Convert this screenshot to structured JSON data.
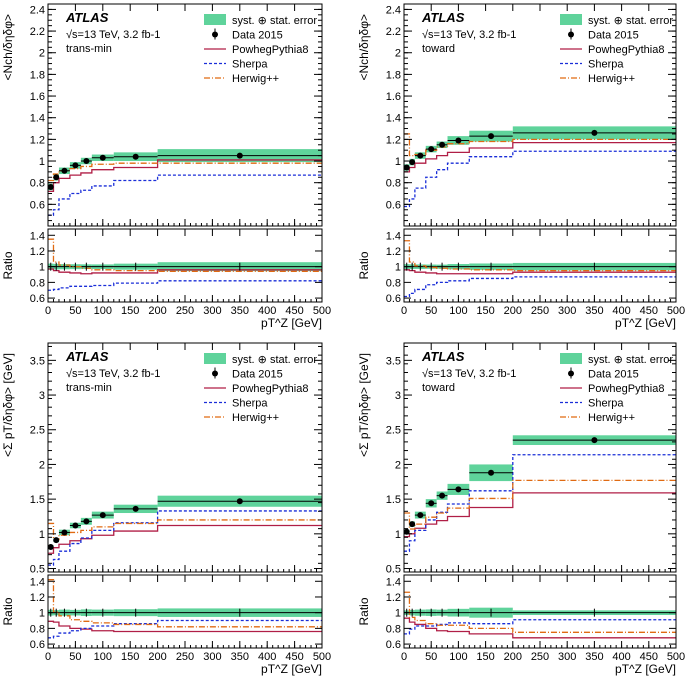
{
  "figure": {
    "experiment": "ATLAS",
    "energy_label": "√s=13 TeV, 3.2 fb-1"
  },
  "legend": {
    "band": "syst. ⊕ stat. error",
    "data": "Data 2015",
    "powheg": "PowhegPythia8",
    "sherpa": "Sherpa",
    "herwig": "Herwig++"
  },
  "colors": {
    "band": "#5fd39b",
    "data": "#000000",
    "powheg": "#b01e46",
    "sherpa": "#1a2ed8",
    "herwig": "#e06a12"
  },
  "chart_data": [
    {
      "type": "line",
      "title": "trans-min",
      "ylabel": "<Nch/δηδφ>",
      "xlabel": "pT^Z [GeV]",
      "ratio_ylabel": "Ratio",
      "xlim": [
        0,
        500
      ],
      "ylim": [
        0.4,
        2.45
      ],
      "ratio_ylim": [
        0.55,
        1.48
      ],
      "x_ticks": [
        0,
        50,
        100,
        150,
        200,
        250,
        300,
        350,
        400,
        450,
        500
      ],
      "y_ticks": [
        0.6,
        0.8,
        1,
        1.2,
        1.4,
        1.6,
        1.8,
        2,
        2.2,
        2.4
      ],
      "ratio_ticks": [
        0.6,
        0.8,
        1,
        1.2,
        1.4
      ],
      "bin_edges": [
        0,
        10,
        20,
        40,
        60,
        80,
        120,
        200,
        500
      ],
      "data": {
        "x": [
          5,
          15,
          30,
          50,
          70,
          100,
          160,
          350
        ],
        "y": [
          0.76,
          0.85,
          0.91,
          0.96,
          1.0,
          1.03,
          1.04,
          1.05
        ],
        "band_half": [
          0.03,
          0.03,
          0.03,
          0.03,
          0.03,
          0.03,
          0.04,
          0.06
        ]
      },
      "series": [
        {
          "name": "PowhegPythia8",
          "values": [
            0.72,
            0.8,
            0.84,
            0.87,
            0.89,
            0.92,
            0.94,
            1.01
          ]
        },
        {
          "name": "Sherpa",
          "values": [
            0.5,
            0.55,
            0.65,
            0.7,
            0.73,
            0.77,
            0.82,
            0.87
          ]
        },
        {
          "name": "Herwig++",
          "values": [
            0.82,
            0.88,
            0.91,
            0.93,
            0.95,
            0.97,
            0.98,
            0.98
          ]
        }
      ],
      "ratio_series": [
        {
          "name": "PowhegPythia8",
          "values": [
            0.97,
            0.95,
            0.93,
            0.92,
            0.91,
            0.92,
            0.92,
            0.96
          ]
        },
        {
          "name": "Sherpa",
          "values": [
            0.7,
            0.71,
            0.73,
            0.75,
            0.75,
            0.76,
            0.79,
            0.82
          ]
        },
        {
          "name": "Herwig++",
          "values": [
            1.35,
            1.06,
            1.02,
            1.0,
            0.98,
            0.96,
            0.95,
            0.94
          ]
        }
      ]
    },
    {
      "type": "line",
      "title": "toward",
      "ylabel": "<Nch/δηδφ>",
      "xlabel": "pT^Z [GeV]",
      "ratio_ylabel": "Ratio",
      "xlim": [
        0,
        500
      ],
      "ylim": [
        0.4,
        2.45
      ],
      "ratio_ylim": [
        0.55,
        1.48
      ],
      "x_ticks": [
        0,
        50,
        100,
        150,
        200,
        250,
        300,
        350,
        400,
        450,
        500
      ],
      "y_ticks": [
        0.6,
        0.8,
        1,
        1.2,
        1.4,
        1.6,
        1.8,
        2,
        2.2,
        2.4
      ],
      "ratio_ticks": [
        0.6,
        0.8,
        1,
        1.2,
        1.4
      ],
      "bin_edges": [
        0,
        10,
        20,
        40,
        60,
        80,
        120,
        200,
        500
      ],
      "data": {
        "x": [
          5,
          15,
          30,
          50,
          70,
          100,
          160,
          350
        ],
        "y": [
          0.94,
          0.99,
          1.05,
          1.11,
          1.15,
          1.19,
          1.23,
          1.26
        ],
        "band_half": [
          0.03,
          0.03,
          0.03,
          0.03,
          0.03,
          0.04,
          0.05,
          0.06
        ]
      },
      "series": [
        {
          "name": "PowhegPythia8",
          "values": [
            0.9,
            0.94,
            0.98,
            1.02,
            1.05,
            1.08,
            1.12,
            1.17
          ]
        },
        {
          "name": "Sherpa",
          "values": [
            0.58,
            0.65,
            0.75,
            0.85,
            0.92,
            0.98,
            1.04,
            1.09
          ]
        },
        {
          "name": "Herwig++",
          "values": [
            1.25,
            1.05,
            1.06,
            1.1,
            1.13,
            1.16,
            1.18,
            1.2
          ]
        }
      ],
      "ratio_series": [
        {
          "name": "PowhegPythia8",
          "values": [
            0.96,
            0.95,
            0.93,
            0.92,
            0.91,
            0.91,
            0.91,
            0.93
          ]
        },
        {
          "name": "Sherpa",
          "values": [
            0.62,
            0.66,
            0.71,
            0.77,
            0.8,
            0.82,
            0.85,
            0.87
          ]
        },
        {
          "name": "Herwig++",
          "values": [
            1.33,
            1.06,
            1.01,
            0.99,
            0.98,
            0.97,
            0.96,
            0.95
          ]
        }
      ]
    },
    {
      "type": "line",
      "title": "trans-min",
      "ylabel": "<Σ pT/δηδφ> [GeV]",
      "xlabel": "pT^Z [GeV]",
      "ratio_ylabel": "Ratio",
      "xlim": [
        0,
        500
      ],
      "ylim": [
        0.45,
        3.75
      ],
      "ratio_ylim": [
        0.55,
        1.48
      ],
      "x_ticks": [
        0,
        50,
        100,
        150,
        200,
        250,
        300,
        350,
        400,
        450,
        500
      ],
      "y_ticks": [
        0.5,
        1,
        1.5,
        2,
        2.5,
        3,
        3.5
      ],
      "ratio_ticks": [
        0.6,
        0.8,
        1,
        1.2,
        1.4
      ],
      "bin_edges": [
        0,
        10,
        20,
        40,
        60,
        80,
        120,
        200,
        500
      ],
      "data": {
        "x": [
          5,
          15,
          30,
          50,
          70,
          100,
          160,
          350
        ],
        "y": [
          0.81,
          0.91,
          1.02,
          1.12,
          1.18,
          1.27,
          1.36,
          1.47
        ],
        "band_half": [
          0.03,
          0.03,
          0.04,
          0.04,
          0.05,
          0.05,
          0.06,
          0.08
        ]
      },
      "series": [
        {
          "name": "PowhegPythia8",
          "values": [
            0.72,
            0.8,
            0.85,
            0.9,
            0.93,
            0.98,
            1.04,
            1.12
          ]
        },
        {
          "name": "Sherpa",
          "values": [
            0.55,
            0.63,
            0.75,
            0.86,
            0.94,
            1.05,
            1.16,
            1.33
          ]
        },
        {
          "name": "Herwig++",
          "values": [
            1.15,
            0.92,
            0.98,
            1.02,
            1.05,
            1.1,
            1.15,
            1.2
          ]
        }
      ],
      "ratio_series": [
        {
          "name": "PowhegPythia8",
          "values": [
            0.89,
            0.88,
            0.83,
            0.8,
            0.79,
            0.77,
            0.76,
            0.76
          ]
        },
        {
          "name": "Sherpa",
          "values": [
            0.68,
            0.7,
            0.74,
            0.77,
            0.8,
            0.83,
            0.86,
            0.9
          ]
        },
        {
          "name": "Herwig++",
          "values": [
            1.42,
            1.01,
            0.96,
            0.91,
            0.89,
            0.87,
            0.85,
            0.82
          ]
        }
      ]
    },
    {
      "type": "line",
      "title": "toward",
      "ylabel": "<Σ pT/δηδφ> [GeV]",
      "xlabel": "pT^Z [GeV]",
      "ratio_ylabel": "Ratio",
      "xlim": [
        0,
        500
      ],
      "ylim": [
        0.45,
        3.75
      ],
      "ratio_ylim": [
        0.55,
        1.48
      ],
      "x_ticks": [
        0,
        50,
        100,
        150,
        200,
        250,
        300,
        350,
        400,
        450,
        500
      ],
      "y_ticks": [
        0.5,
        1,
        1.5,
        2,
        2.5,
        3,
        3.5
      ],
      "ratio_ticks": [
        0.6,
        0.8,
        1,
        1.2,
        1.4
      ],
      "bin_edges": [
        0,
        10,
        20,
        40,
        60,
        80,
        120,
        200,
        500
      ],
      "data": {
        "x": [
          5,
          15,
          30,
          50,
          70,
          100,
          160,
          350
        ],
        "y": [
          1.03,
          1.14,
          1.27,
          1.44,
          1.55,
          1.64,
          1.88,
          2.35
        ],
        "band_half": [
          0.03,
          0.04,
          0.05,
          0.06,
          0.06,
          0.08,
          0.12,
          0.07
        ]
      },
      "series": [
        {
          "name": "PowhegPythia8",
          "values": [
            0.96,
            1.0,
            1.08,
            1.14,
            1.19,
            1.25,
            1.38,
            1.59
          ]
        },
        {
          "name": "Sherpa",
          "values": [
            0.75,
            0.9,
            1.05,
            1.2,
            1.31,
            1.43,
            1.62,
            2.14
          ]
        },
        {
          "name": "Herwig++",
          "values": [
            1.3,
            1.07,
            1.14,
            1.24,
            1.3,
            1.37,
            1.51,
            1.77
          ]
        }
      ],
      "ratio_series": [
        {
          "name": "PowhegPythia8",
          "values": [
            0.93,
            0.88,
            0.85,
            0.8,
            0.77,
            0.76,
            0.73,
            0.68
          ]
        },
        {
          "name": "Sherpa",
          "values": [
            0.73,
            0.79,
            0.83,
            0.83,
            0.85,
            0.87,
            0.86,
            0.91
          ]
        },
        {
          "name": "Herwig++",
          "values": [
            1.26,
            0.94,
            0.9,
            0.86,
            0.84,
            0.84,
            0.8,
            0.75
          ]
        }
      ]
    }
  ]
}
